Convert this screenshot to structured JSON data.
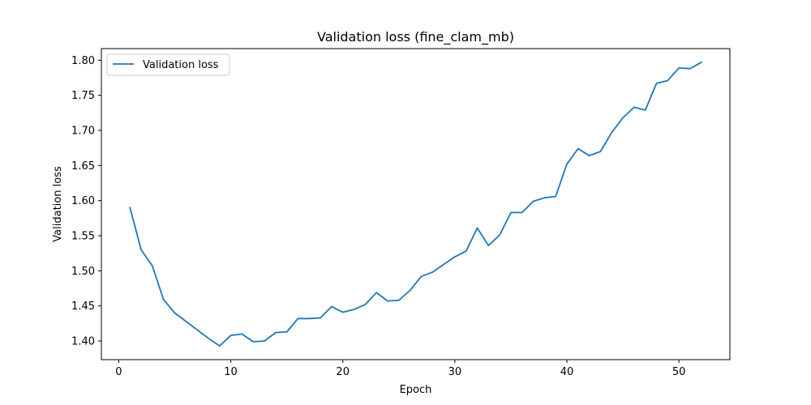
{
  "chart_data": {
    "type": "line",
    "title": "Validation loss (fine_clam_mb)",
    "xlabel": "Epoch",
    "ylabel": "Validation loss",
    "xlim": [
      -1.55,
      54.55
    ],
    "ylim": [
      1.3735,
      1.8165
    ],
    "xticks": [
      0,
      10,
      20,
      30,
      40,
      50
    ],
    "yticks": [
      1.4,
      1.45,
      1.5,
      1.55,
      1.6,
      1.65,
      1.7,
      1.75,
      1.8
    ],
    "xtick_labels": [
      "0",
      "10",
      "20",
      "30",
      "40",
      "50"
    ],
    "ytick_labels": [
      "1.40",
      "1.45",
      "1.50",
      "1.55",
      "1.60",
      "1.65",
      "1.70",
      "1.75",
      "1.80"
    ],
    "grid": false,
    "legend": {
      "position": "top-left",
      "entries": [
        "Validation loss"
      ]
    },
    "series_color": "#1f77b4",
    "series": [
      {
        "name": "Validation loss",
        "x": [
          1,
          2,
          3,
          4,
          5,
          6,
          7,
          8,
          9,
          10,
          11,
          12,
          13,
          14,
          15,
          16,
          17,
          18,
          19,
          20,
          21,
          22,
          23,
          24,
          25,
          26,
          27,
          28,
          29,
          30,
          31,
          32,
          33,
          34,
          35,
          36,
          37,
          38,
          39,
          40,
          41,
          42,
          43,
          44,
          45,
          46,
          47,
          48,
          49,
          50,
          51,
          52
        ],
        "y": [
          1.59,
          1.53,
          1.507,
          1.459,
          1.44,
          1.428,
          1.416,
          1.404,
          1.393,
          1.408,
          1.41,
          1.399,
          1.4,
          1.412,
          1.413,
          1.432,
          1.432,
          1.433,
          1.449,
          1.441,
          1.445,
          1.452,
          1.469,
          1.457,
          1.458,
          1.472,
          1.492,
          1.498,
          1.509,
          1.52,
          1.528,
          1.561,
          1.536,
          1.551,
          1.583,
          1.583,
          1.599,
          1.604,
          1.606,
          1.652,
          1.674,
          1.664,
          1.67,
          1.697,
          1.718,
          1.733,
          1.729,
          1.767,
          1.771,
          1.789,
          1.788,
          1.797
        ]
      }
    ]
  }
}
